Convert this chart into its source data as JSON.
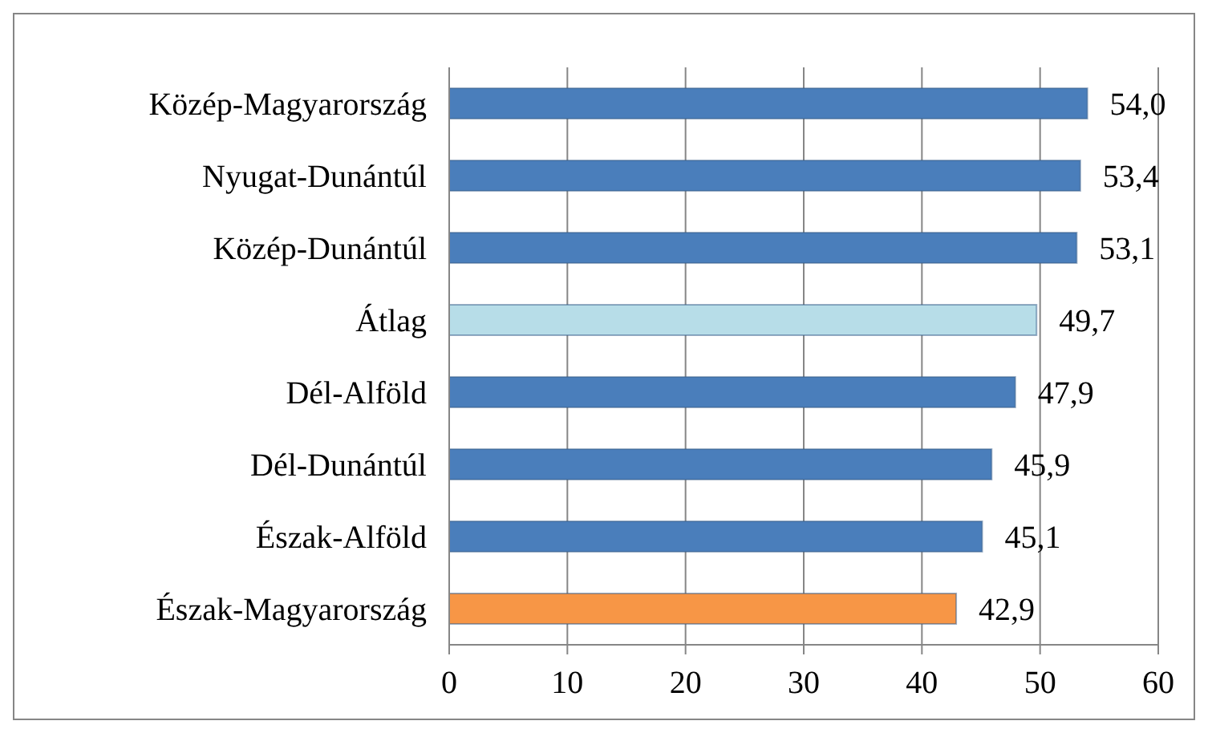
{
  "chart_data": {
    "type": "bar",
    "orientation": "horizontal",
    "categories": [
      "Közép-Magyarország",
      "Nyugat-Dunántúl",
      "Közép-Dunántúl",
      "Átlag",
      "Dél-Alföld",
      "Dél-Dunántúl",
      "Észak-Alföld",
      "Észak-Magyarország"
    ],
    "values": [
      54.0,
      53.4,
      53.1,
      49.7,
      47.9,
      45.9,
      45.1,
      42.9
    ],
    "colors": [
      "#4a7ebb",
      "#4a7ebb",
      "#4a7ebb",
      "#b7dde8",
      "#4a7ebb",
      "#4a7ebb",
      "#4a7ebb",
      "#f79646"
    ],
    "value_labels": [
      "54,0",
      "53,4",
      "53,1",
      "49,7",
      "47,9",
      "45,9",
      "45,1",
      "42,9"
    ],
    "xlim": [
      0,
      60
    ],
    "xticks": [
      0,
      10,
      20,
      30,
      40,
      50,
      60
    ],
    "grid": "x"
  }
}
